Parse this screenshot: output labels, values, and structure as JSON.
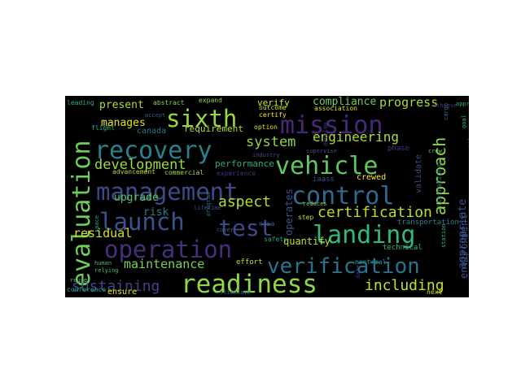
{
  "background": "#000000",
  "words": [
    {
      "text": "readiness",
      "color": "#8fd744"
    },
    {
      "text": "vehicle",
      "color": "#5ec962"
    },
    {
      "text": "mission",
      "color": "#482878"
    },
    {
      "text": "management",
      "color": "#3e4a89"
    },
    {
      "text": "operation",
      "color": "#472d7b"
    },
    {
      "text": "launch",
      "color": "#3b528b"
    },
    {
      "text": "recovery",
      "color": "#26828e"
    },
    {
      "text": "control",
      "color": "#31688e"
    },
    {
      "text": "landing",
      "color": "#35b779"
    },
    {
      "text": "sixth",
      "color": "#9ad93c"
    },
    {
      "text": "evaluation",
      "color": "#6ccd5a"
    },
    {
      "text": "verification",
      "color": "#2c728e"
    },
    {
      "text": "test",
      "color": "#3e4989"
    },
    {
      "text": "certification",
      "color": "#b8de29"
    },
    {
      "text": "approach",
      "color": "#90d743"
    },
    {
      "text": "including",
      "color": "#c8e020"
    },
    {
      "text": "sustaining",
      "color": "#3f4788"
    },
    {
      "text": "development",
      "color": "#a2da37"
    },
    {
      "text": "aspect",
      "color": "#b5de2b"
    },
    {
      "text": "system",
      "color": "#8ed645"
    },
    {
      "text": "engineering",
      "color": "#b0dd2f"
    },
    {
      "text": "maintenance",
      "color": "#7ad151"
    },
    {
      "text": "residual",
      "color": "#d8e219"
    },
    {
      "text": "progress",
      "color": "#a5db36"
    },
    {
      "text": "manages",
      "color": "#e5e419"
    },
    {
      "text": "present",
      "color": "#aadc32"
    },
    {
      "text": "upgrade",
      "color": "#52c569"
    },
    {
      "text": "appropriate",
      "color": "#39558c"
    },
    {
      "text": "operates",
      "color": "#3a548c"
    },
    {
      "text": "risk",
      "color": "#26828e"
    },
    {
      "text": "environment",
      "color": "#3b518b"
    },
    {
      "text": "compliance",
      "color": "#6ece58"
    },
    {
      "text": "quantify",
      "color": "#c2df23"
    },
    {
      "text": "requirement",
      "color": "#b5de2b"
    },
    {
      "text": "performance",
      "color": "#29af7f"
    },
    {
      "text": "verify",
      "color": "#d8e219"
    },
    {
      "text": "ensure",
      "color": "#e2e418"
    },
    {
      "text": "crewed",
      "color": "#fde725"
    },
    {
      "text": "validate",
      "color": "#3e4a89"
    },
    {
      "text": "canada",
      "color": "#2a788e"
    },
    {
      "text": "commercial",
      "color": "#a0da39"
    },
    {
      "text": "advancement",
      "color": "#b0dd2f"
    },
    {
      "text": "technical",
      "color": "#2fb47c"
    },
    {
      "text": "transportation",
      "color": "#25848e"
    },
    {
      "text": "international",
      "color": "#2e6e8e"
    },
    {
      "text": "effort",
      "color": "#c0df25"
    },
    {
      "text": "montreal",
      "color": "#1f948c"
    },
    {
      "text": "next",
      "color": "#d0e11c"
    },
    {
      "text": "safety",
      "color": "#22a884"
    },
    {
      "text": "step",
      "color": "#c2df23"
    },
    {
      "text": "iaass",
      "color": "#3f4889"
    },
    {
      "text": "option",
      "color": "#dde318"
    },
    {
      "text": "association",
      "color": "#dde318"
    },
    {
      "text": "certify",
      "color": "#fde725"
    },
    {
      "text": "outcome",
      "color": "#cde11d"
    },
    {
      "text": "expand",
      "color": "#8bd646"
    },
    {
      "text": "abstract",
      "color": "#84d44b"
    },
    {
      "text": "leading",
      "color": "#2cb17e"
    },
    {
      "text": "flight",
      "color": "#26ad81"
    },
    {
      "text": "nasa",
      "color": "#31668e"
    },
    {
      "text": "industry",
      "color": "#3d4e8a"
    },
    {
      "text": "experience",
      "color": "#46337f"
    },
    {
      "text": "phase",
      "color": "#46337f"
    },
    {
      "text": "space",
      "color": "#21a685"
    },
    {
      "text": "human",
      "color": "#4ac16d"
    },
    {
      "text": "relying",
      "color": "#4ac16d"
    },
    {
      "text": "conference",
      "color": "#25ab82"
    },
    {
      "text": "stimulate",
      "color": "#2e6d8e"
    },
    {
      "text": "reduces",
      "color": "#81d34d"
    },
    {
      "text": "station",
      "color": "#2db27d"
    },
    {
      "text": "quantify",
      "color": "#424086"
    },
    {
      "text": "cover",
      "color": "#32658e"
    },
    {
      "text": "date",
      "color": "#443983"
    },
    {
      "text": "program",
      "color": "#2a788e"
    },
    {
      "text": "lifetime",
      "color": "#3c4f8a"
    },
    {
      "text": "accept",
      "color": "#38588c"
    },
    {
      "text": "supervise",
      "color": "#3d4d8a"
    },
    {
      "text": "develop",
      "color": "#414487"
    },
    {
      "text": "crew",
      "color": "#6ccd5a"
    },
    {
      "text": "achieve",
      "color": "#46337f"
    },
    {
      "text": "cargo",
      "color": "#2c738e"
    },
    {
      "text": "goal",
      "color": "#2ab07f"
    },
    {
      "text": "reuse",
      "color": "#4ac16d"
    },
    {
      "text": "approach",
      "color": "#22a884"
    },
    {
      "text": "safe",
      "color": "#dde318"
    }
  ]
}
